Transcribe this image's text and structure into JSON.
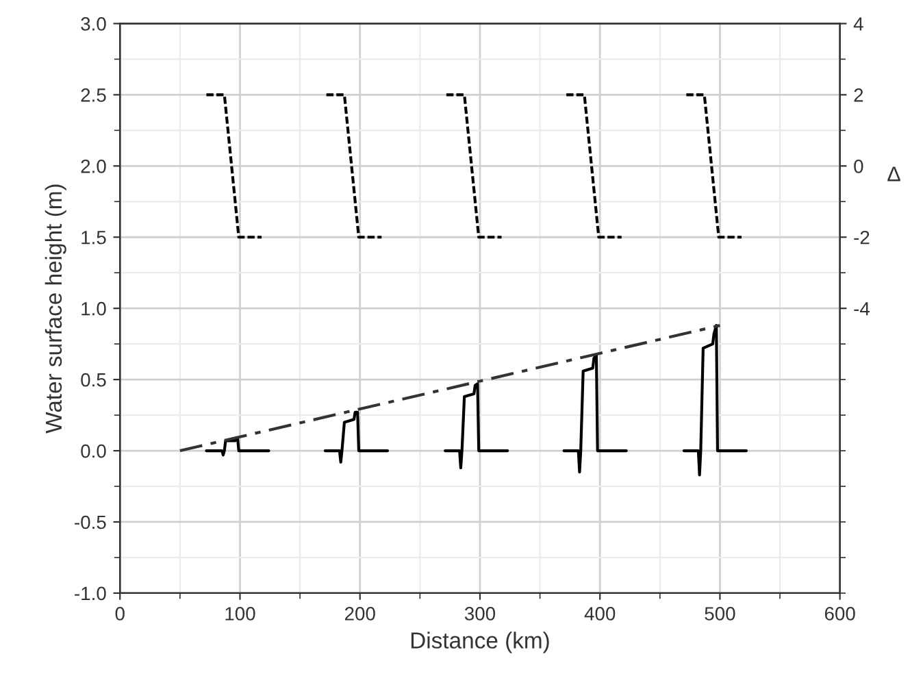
{
  "chart_data": {
    "type": "line",
    "xlabel": "Distance (km)",
    "ylabel": "Water surface height (m)",
    "y2label": "Δ",
    "xlim": [
      0,
      600
    ],
    "xticks": [
      0,
      100,
      200,
      300,
      400,
      500,
      600
    ],
    "ylim": [
      -1.0,
      3.0
    ],
    "yticks": [
      {
        "value": -1.0,
        "label": "-1.0"
      },
      {
        "value": -0.5,
        "label": "-0.5"
      },
      {
        "value": 0.0,
        "label": "0.0"
      },
      {
        "value": 0.5,
        "label": "0.5"
      },
      {
        "value": 1.0,
        "label": "1.0"
      },
      {
        "value": 1.5,
        "label": "1.5"
      },
      {
        "value": 2.0,
        "label": "2.0"
      },
      {
        "value": 2.5,
        "label": "2.5"
      },
      {
        "value": 3.0,
        "label": "3.0"
      }
    ],
    "y2lim": [
      -12,
      4
    ],
    "y2ticks": [
      -4,
      -2,
      0,
      2,
      4
    ],
    "grid": true,
    "legend": false,
    "series": [
      {
        "color": "#000000",
        "line_style": "solid",
        "x": [
          72,
          85,
          86,
          87,
          88,
          96,
          97,
          98,
          99,
          124
        ],
        "values": [
          0,
          0,
          -0.03,
          0,
          0.07,
          0.07,
          0.09,
          0.09,
          0,
          0
        ]
      },
      {
        "color": "#000000",
        "line_style": "solid",
        "x": [
          171,
          183,
          184,
          185,
          187,
          195,
          196,
          198,
          199,
          223
        ],
        "values": [
          0,
          0,
          -0.08,
          0,
          0.2,
          0.22,
          0.27,
          0.27,
          0,
          0
        ]
      },
      {
        "color": "#000000",
        "line_style": "solid",
        "x": [
          271,
          283,
          284,
          285,
          287,
          295,
          296,
          298,
          299,
          323
        ],
        "values": [
          0,
          0,
          -0.12,
          0,
          0.38,
          0.4,
          0.46,
          0.47,
          0,
          0
        ]
      },
      {
        "color": "#000000",
        "line_style": "solid",
        "x": [
          370,
          382,
          383,
          384,
          386,
          394,
          395,
          397,
          398,
          422
        ],
        "values": [
          0,
          0,
          -0.15,
          0,
          0.56,
          0.58,
          0.65,
          0.67,
          0,
          0
        ]
      },
      {
        "color": "#000000",
        "line_style": "solid",
        "x": [
          470,
          482,
          483,
          484,
          486,
          494,
          495,
          497,
          498,
          522
        ],
        "values": [
          0,
          0,
          -0.17,
          0,
          0.72,
          0.75,
          0.82,
          0.88,
          0,
          0
        ]
      },
      {
        "color": "#000000",
        "line_style": "dashed",
        "axis": "y2",
        "x": [
          72,
          87,
          99,
          118
        ],
        "values": [
          2,
          2,
          -2,
          -2
        ]
      },
      {
        "color": "#000000",
        "line_style": "dashed",
        "axis": "y2",
        "x": [
          172,
          187,
          199,
          218
        ],
        "values": [
          2,
          2,
          -2,
          -2
        ]
      },
      {
        "color": "#000000",
        "line_style": "dashed",
        "axis": "y2",
        "x": [
          272,
          287,
          299,
          318
        ],
        "values": [
          2,
          2,
          -2,
          -2
        ]
      },
      {
        "color": "#000000",
        "line_style": "dashed",
        "axis": "y2",
        "x": [
          372,
          387,
          399,
          418
        ],
        "values": [
          2,
          2,
          -2,
          -2
        ]
      },
      {
        "color": "#000000",
        "line_style": "dashed",
        "axis": "y2",
        "x": [
          472,
          487,
          499,
          518
        ],
        "values": [
          2,
          2,
          -2,
          -2
        ]
      },
      {
        "color": "#333333",
        "line_style": "dashdot",
        "x": [
          50,
          500
        ],
        "values": [
          0,
          0.88
        ]
      }
    ]
  }
}
